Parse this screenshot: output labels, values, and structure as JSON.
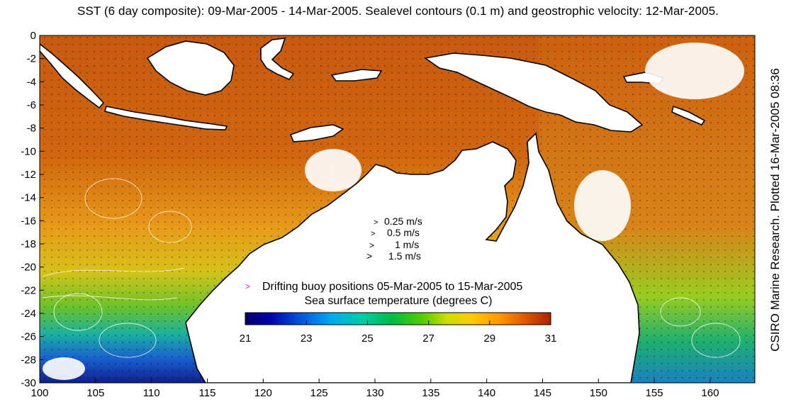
{
  "title": "SST (6 day composite): 09-Mar-2005 - 14-Mar-2005. Sealevel contours (0.1 m) and geostrophic velocity: 12-Mar-2005.",
  "credit": "CSIRO Marine Research. Plotted 16-Mar-2005 08:36",
  "map": {
    "lon_range": [
      100,
      164
    ],
    "lat_range": [
      -30,
      0
    ],
    "x_ticks": [
      "100",
      "105",
      "110",
      "115",
      "120",
      "125",
      "130",
      "135",
      "140",
      "145",
      "150",
      "155",
      "160"
    ],
    "y_ticks": [
      "0",
      "-2",
      "-4",
      "-6",
      "-8",
      "-10",
      "-12",
      "-14",
      "-16",
      "-18",
      "-20",
      "-22",
      "-24",
      "-26",
      "-28",
      "-30"
    ]
  },
  "velocity_key": [
    {
      "symbol": ">",
      "label": "0.25 m/s"
    },
    {
      "symbol": ">",
      "label": "0.5 m/s"
    },
    {
      "symbol": ">",
      "label": "1 m/s"
    },
    {
      "symbol": ">",
      "label": "1.5 m/s"
    }
  ],
  "buoy_legend": {
    "symbol": ">",
    "label": "Drifting buoy positions 05-Mar-2005 to 15-Mar-2005",
    "color": "#ff00ff"
  },
  "colorbar": {
    "label": "Sea surface temperature (degrees C)",
    "ticks": [
      "21",
      "23",
      "25",
      "27",
      "29",
      "31"
    ],
    "range": [
      21,
      31
    ]
  },
  "colors": {
    "land": "#ffffff",
    "coast": "#000000",
    "contours": "#ffffff",
    "sst_scale": [
      "#000066",
      "#0000aa",
      "#0055dd",
      "#00aaee",
      "#00ccaa",
      "#00bb44",
      "#55cc00",
      "#ccdd00",
      "#ffcc00",
      "#ff9900",
      "#dd5500",
      "#aa2200"
    ]
  }
}
